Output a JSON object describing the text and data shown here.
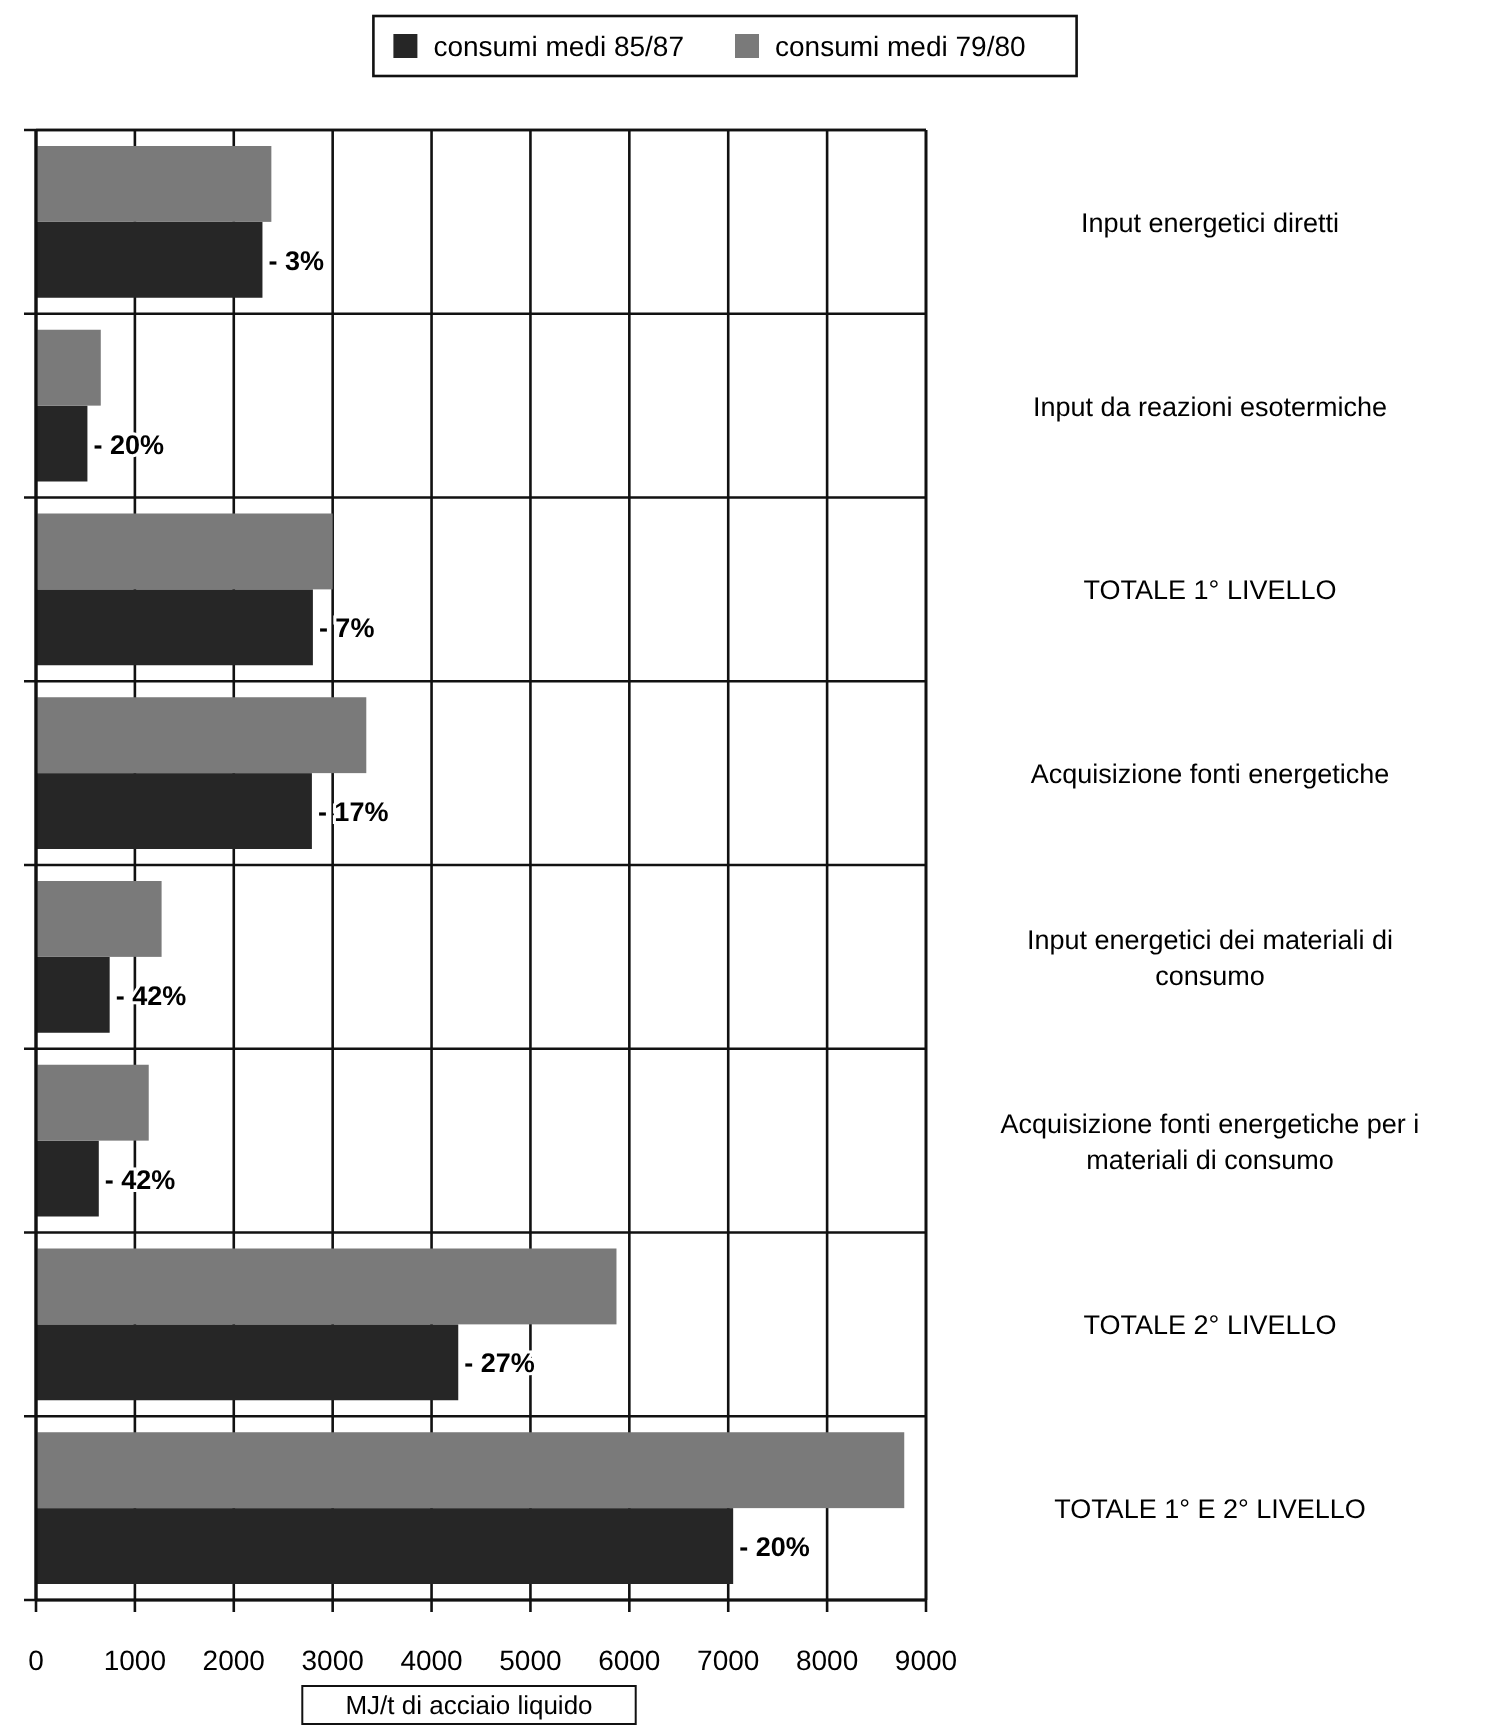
{
  "chart_data": {
    "type": "bar",
    "orientation": "horizontal",
    "xlabel": "MJ/t di acciaio liquido",
    "categories": [
      "Input energetici diretti",
      "Input da reazioni esotermiche",
      "TOTALE 1° LIVELLO",
      "Acquisizione fonti energetiche",
      "Input energetici dei materiali di consumo",
      "Acquisizione fonti energetiche per i materiali di consumo",
      "TOTALE 2° LIVELLO",
      "TOTALE 1° E 2° LIVELLO"
    ],
    "series": [
      {
        "name": "consumi medi 85/87",
        "color": "#262626",
        "values": [
          2290,
          520,
          2800,
          2790,
          745,
          635,
          4270,
          7050
        ]
      },
      {
        "name": "consumi medi 79/80",
        "color": "#7a7a7a",
        "values": [
          2380,
          655,
          3000,
          3340,
          1270,
          1140,
          5870,
          8780
        ]
      }
    ],
    "xlim": [
      0,
      9000
    ],
    "xticks": [
      0,
      1000,
      2000,
      3000,
      4000,
      5000,
      6000,
      7000,
      8000,
      9000
    ],
    "grid": true,
    "legend": "top",
    "annotations": [
      {
        "text": "- 3%",
        "x": 2290,
        "y": "Input energetici diretti"
      },
      {
        "text": "- 20%",
        "x": 520,
        "y": "Input da reazioni esotermiche"
      },
      {
        "text": "- 7%",
        "x": 2800,
        "y": "TOTALE 1° LIVELLO"
      },
      {
        "text": "- 17%",
        "x": 2790,
        "y": "Acquisizione fonti energetiche"
      },
      {
        "text": "- 42%",
        "x": 745,
        "y": "Input energetici dei materiali di consumo"
      },
      {
        "text": "- 42%",
        "x": 635,
        "y": "Acquisizione fonti energetiche per i materiali di consumo"
      },
      {
        "text": "- 27%",
        "x": 4270,
        "y": "TOTALE 2° LIVELLO"
      },
      {
        "text": "- 20%",
        "x": 7050,
        "y": "TOTALE 1° E 2° LIVELLO"
      }
    ]
  }
}
